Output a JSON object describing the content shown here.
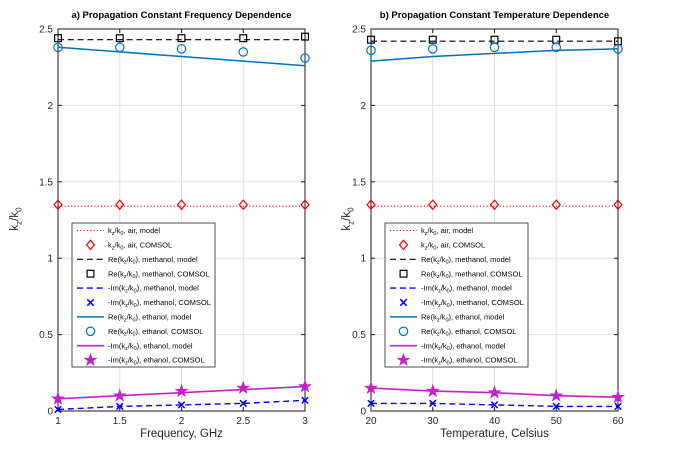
{
  "figure": {
    "background": "#ffffff"
  },
  "chart_data": [
    {
      "type": "line",
      "title": "a) Propagation Constant Frequency Dependence",
      "xlabel": "Frequency, GHz",
      "ylabel": "k_z/k_0",
      "xlim": [
        1,
        3
      ],
      "ylim": [
        0,
        2.5
      ],
      "xticks": [
        1,
        1.5,
        2,
        2.5,
        3
      ],
      "yticks": [
        0,
        0.5,
        1,
        1.5,
        2,
        2.5
      ],
      "xtick_labels": [
        "1",
        "1.5",
        "2",
        "2.5",
        "3"
      ],
      "ytick_labels": [
        "0",
        "0.5",
        "1",
        "1.5",
        "2",
        "2.5"
      ],
      "grid": true,
      "legend_location": "inside-center-left",
      "x": [
        1,
        1.5,
        2,
        2.5,
        3
      ],
      "series": [
        {
          "name": "k_z/k_0, air, model",
          "values": [
            1.34,
            1.34,
            1.34,
            1.34,
            1.34
          ],
          "color": "#ff0000",
          "line": "dotted",
          "marker": "none",
          "width": 1.1
        },
        {
          "name": "k_z/k_0, air, COMSOL",
          "values": [
            1.35,
            1.35,
            1.35,
            1.35,
            1.35
          ],
          "color": "#ff0000",
          "line": "none",
          "marker": "diamond",
          "width": 1.2
        },
        {
          "name": "Re(k_z/k_0), methanol, model",
          "values": [
            2.43,
            2.43,
            2.43,
            2.43,
            2.43
          ],
          "color": "#000000",
          "line": "dashed",
          "marker": "none",
          "width": 1.2
        },
        {
          "name": "Re(k_z/k_0), methanol, COMSOL",
          "values": [
            2.44,
            2.44,
            2.44,
            2.44,
            2.45
          ],
          "color": "#000000",
          "line": "none",
          "marker": "square",
          "width": 1.2
        },
        {
          "name": "-Im(k_z/k_0), methanol, model",
          "values": [
            0.01,
            0.03,
            0.04,
            0.05,
            0.07
          ],
          "color": "#0000ff",
          "line": "dashed",
          "marker": "none",
          "width": 1.4
        },
        {
          "name": "-Im(k_z/k_0), methanol, COMSOL",
          "values": [
            0.01,
            0.03,
            0.04,
            0.05,
            0.07
          ],
          "color": "#0000ff",
          "line": "none",
          "marker": "x",
          "width": 1.4
        },
        {
          "name": "Re(k_z/k_0), ethanol, model",
          "values": [
            2.38,
            2.35,
            2.32,
            2.29,
            2.26
          ],
          "color": "#0072bd",
          "line": "solid",
          "marker": "none",
          "width": 1.5
        },
        {
          "name": "Re(k_z/k_0), ethanol, COMSOL",
          "values": [
            2.38,
            2.38,
            2.37,
            2.35,
            2.31
          ],
          "color": "#0072bd",
          "line": "none",
          "marker": "circle",
          "width": 1.2
        },
        {
          "name": "-Im(k_z/k_0), ethanol, model",
          "values": [
            0.08,
            0.1,
            0.12,
            0.14,
            0.16
          ],
          "color": "#c820c8",
          "line": "solid",
          "marker": "none",
          "width": 1.6
        },
        {
          "name": "-Im(k_z/k_0), ethanol, COMSOL",
          "values": [
            0.08,
            0.1,
            0.13,
            0.15,
            0.16
          ],
          "color": "#c820c8",
          "line": "none",
          "marker": "star",
          "width": 1.2
        }
      ]
    },
    {
      "type": "line",
      "title": "b) Propagation Constant Temperature Dependence",
      "xlabel": "Temperature, Celsius",
      "ylabel": "k_z/k_0",
      "xlim": [
        20,
        60
      ],
      "ylim": [
        0,
        2.5
      ],
      "xticks": [
        20,
        30,
        40,
        50,
        60
      ],
      "yticks": [
        0,
        0.5,
        1,
        1.5,
        2,
        2.5
      ],
      "xtick_labels": [
        "20",
        "30",
        "40",
        "50",
        "60"
      ],
      "ytick_labels": [
        "0",
        "0.5",
        "1",
        "1.5",
        "2",
        "2.5"
      ],
      "grid": true,
      "legend_location": "inside-center-left",
      "x": [
        20,
        30,
        40,
        50,
        60
      ],
      "series": [
        {
          "name": "k_z/k_0, air, model",
          "values": [
            1.34,
            1.34,
            1.34,
            1.34,
            1.34
          ],
          "color": "#ff0000",
          "line": "dotted",
          "marker": "none",
          "width": 1.1
        },
        {
          "name": "k_z/k_0, air, COMSOL",
          "values": [
            1.35,
            1.35,
            1.35,
            1.35,
            1.35
          ],
          "color": "#ff0000",
          "line": "none",
          "marker": "diamond",
          "width": 1.2
        },
        {
          "name": "Re(k_z/k_0), methanol, model",
          "values": [
            2.42,
            2.42,
            2.42,
            2.42,
            2.42
          ],
          "color": "#000000",
          "line": "dashed",
          "marker": "none",
          "width": 1.2
        },
        {
          "name": "Re(k_z/k_0), methanol, COMSOL",
          "values": [
            2.43,
            2.43,
            2.43,
            2.43,
            2.42
          ],
          "color": "#000000",
          "line": "none",
          "marker": "square",
          "width": 1.2
        },
        {
          "name": "-Im(k_z/k_0), methanol, model",
          "values": [
            0.05,
            0.05,
            0.04,
            0.03,
            0.03
          ],
          "color": "#0000ff",
          "line": "dashed",
          "marker": "none",
          "width": 1.4
        },
        {
          "name": "-Im(k_z/k_0), methanol, COMSOL",
          "values": [
            0.05,
            0.05,
            0.04,
            0.03,
            0.03
          ],
          "color": "#0000ff",
          "line": "none",
          "marker": "x",
          "width": 1.4
        },
        {
          "name": "Re(k_z/k_0), ethanol, model",
          "values": [
            2.29,
            2.32,
            2.34,
            2.36,
            2.37
          ],
          "color": "#0072bd",
          "line": "solid",
          "marker": "none",
          "width": 1.5
        },
        {
          "name": "Re(k_z/k_0), ethanol, COMSOL",
          "values": [
            2.36,
            2.37,
            2.38,
            2.38,
            2.37
          ],
          "color": "#0072bd",
          "line": "none",
          "marker": "circle",
          "width": 1.2
        },
        {
          "name": "-Im(k_z/k_0), ethanol, model",
          "values": [
            0.15,
            0.13,
            0.12,
            0.1,
            0.09
          ],
          "color": "#c820c8",
          "line": "solid",
          "marker": "none",
          "width": 1.6
        },
        {
          "name": "-Im(k_z/k_0), ethanol, COMSOL",
          "values": [
            0.15,
            0.13,
            0.12,
            0.1,
            0.09
          ],
          "color": "#c820c8",
          "line": "none",
          "marker": "star",
          "width": 1.2
        }
      ]
    }
  ],
  "style": {
    "grid_color": "#e0e0e0",
    "axis_color": "#1a1a1a",
    "tick_label_color": "#262626",
    "legend_border_color": "#4d4d4d",
    "legend_background": "#ffffff"
  }
}
